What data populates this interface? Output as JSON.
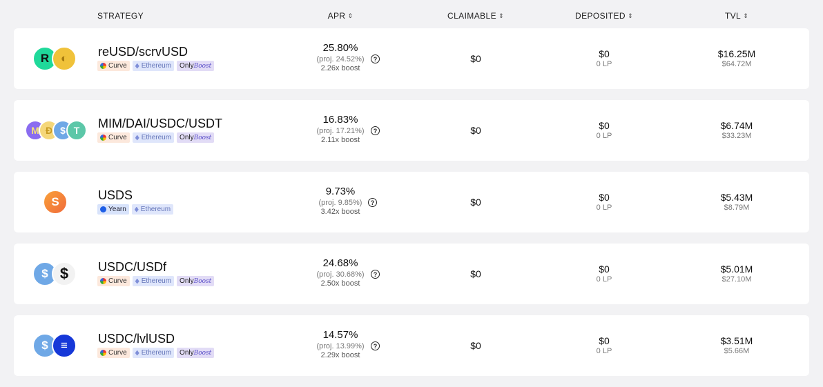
{
  "header": {
    "strategy": "STRATEGY",
    "apr": "APR",
    "claimable": "CLAIMABLE",
    "deposited": "DEPOSITED",
    "tvl": "TVL",
    "sort_icon": "sort-icon"
  },
  "colors": {
    "row_bg": "#ffffff",
    "page_bg": "#f2f2f4",
    "curve_tag": "#fce8dc",
    "eth_tag": "#dfe6fb",
    "boost_tag": "#e2dcf6",
    "yearn_tag": "#d8e3fb"
  },
  "rows": [
    {
      "name": "reUSD/scrvUSD",
      "tags": {
        "protocol": "Curve",
        "chain": "Ethereum",
        "only": "Only",
        "boost": "Boost"
      },
      "icons": [
        "reusd-token-icon",
        "scrvusd-token-icon"
      ],
      "apr": "25.80%",
      "proj": "(proj. 24.52%)",
      "boost": "2.26x boost",
      "claimable": "$0",
      "deposited": "$0",
      "deposited_lp": "0 LP",
      "tvl": "$16.25M",
      "tvl_sub": "$64.72M"
    },
    {
      "name": "MIM/DAI/USDC/USDT",
      "tags": {
        "protocol": "Curve",
        "chain": "Ethereum",
        "only": "Only",
        "boost": "Boost"
      },
      "icons": [
        "mim-token-icon",
        "dai-token-icon",
        "usdc-token-icon",
        "usdt-token-icon"
      ],
      "apr": "16.83%",
      "proj": "(proj. 17.21%)",
      "boost": "2.11x boost",
      "claimable": "$0",
      "deposited": "$0",
      "deposited_lp": "0 LP",
      "tvl": "$6.74M",
      "tvl_sub": "$33.23M"
    },
    {
      "name": "USDS",
      "tags": {
        "protocol": "Yearn",
        "chain": "Ethereum"
      },
      "icons": [
        "usds-token-icon"
      ],
      "apr": "9.73%",
      "proj": "(proj. 9.85%)",
      "boost": "3.42x boost",
      "claimable": "$0",
      "deposited": "$0",
      "deposited_lp": "0 LP",
      "tvl": "$5.43M",
      "tvl_sub": "$8.79M"
    },
    {
      "name": "USDC/USDf",
      "tags": {
        "protocol": "Curve",
        "chain": "Ethereum",
        "only": "Only",
        "boost": "Boost"
      },
      "icons": [
        "usdc-token-icon",
        "usdf-token-icon"
      ],
      "apr": "24.68%",
      "proj": "(proj. 30.68%)",
      "boost": "2.50x boost",
      "claimable": "$0",
      "deposited": "$0",
      "deposited_lp": "0 LP",
      "tvl": "$5.01M",
      "tvl_sub": "$27.10M"
    },
    {
      "name": "USDC/lvlUSD",
      "tags": {
        "protocol": "Curve",
        "chain": "Ethereum",
        "only": "Only",
        "boost": "Boost"
      },
      "icons": [
        "usdc-token-icon",
        "lvlusd-token-icon"
      ],
      "apr": "14.57%",
      "proj": "(proj. 13.99%)",
      "boost": "2.29x boost",
      "claimable": "$0",
      "deposited": "$0",
      "deposited_lp": "0 LP",
      "tvl": "$3.51M",
      "tvl_sub": "$5.66M"
    }
  ]
}
